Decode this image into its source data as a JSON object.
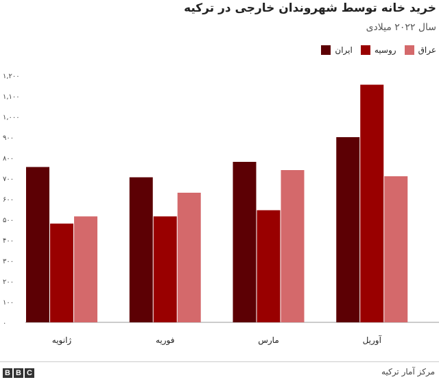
{
  "title": "خرید خانه توسط شهروندان خارجی در ترکیه",
  "subtitle": "سال ۲۰۲۲ میلادی",
  "source": "مرکز آمار ترکیه",
  "logo": [
    "B",
    "B",
    "C"
  ],
  "colors": {
    "iran": "#5c0004",
    "russia": "#990000",
    "iraq": "#d4696b"
  },
  "chart_data": {
    "type": "bar",
    "categories": [
      "ژانویه",
      "فوریه",
      "مارس",
      "آوریل"
    ],
    "series": [
      {
        "name": "ایران",
        "values": [
          755,
          705,
          780,
          900
        ]
      },
      {
        "name": "روسیه",
        "values": [
          480,
          515,
          545,
          1155
        ]
      },
      {
        "name": "عراق",
        "values": [
          515,
          630,
          740,
          710
        ]
      }
    ],
    "ylim": [
      0,
      1200
    ],
    "yticks": [
      "۰",
      "۱۰۰",
      "۲۰۰",
      "۳۰۰",
      "۴۰۰",
      "۵۰۰",
      "۶۰۰",
      "۷۰۰",
      "۸۰۰",
      "۹۰۰",
      "۱,۰۰۰",
      "۱,۱۰۰",
      "۱,۲۰۰"
    ],
    "grid": false,
    "legend": "top-right"
  }
}
